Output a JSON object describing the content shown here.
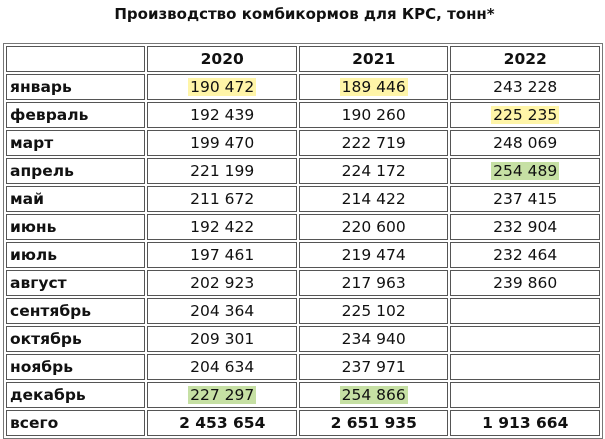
{
  "title": "Производство комбикормов для КРС, тонн*",
  "table": {
    "header": [
      "2020",
      "2021",
      "2022"
    ],
    "rows": [
      [
        "январь",
        "190 472",
        "189 446",
        "243 228"
      ],
      [
        "февраль",
        "192 439",
        "190 260",
        "225 235"
      ],
      [
        "март",
        "199 470",
        "222 719",
        "248 069"
      ],
      [
        "апрель",
        "221 199",
        "224 172",
        "254 489"
      ],
      [
        "май",
        "211 672",
        "214 422",
        "237 415"
      ],
      [
        "июнь",
        "192 422",
        "220 600",
        "232 904"
      ],
      [
        "июль",
        "197 461",
        "219 474",
        "232 464"
      ],
      [
        "август",
        "202 923",
        "217 963",
        "239 860"
      ],
      [
        "сентябрь",
        "204 364",
        "225 102",
        null
      ],
      [
        "октябрь",
        "209 301",
        "234 940",
        null
      ],
      [
        "ноябрь",
        "204 634",
        "237 971",
        null
      ],
      [
        "декабрь",
        "227 297",
        "254 866",
        null
      ],
      [
        "всего",
        "2 453 654",
        "2 651 935",
        "1 913 664"
      ]
    ]
  }
}
